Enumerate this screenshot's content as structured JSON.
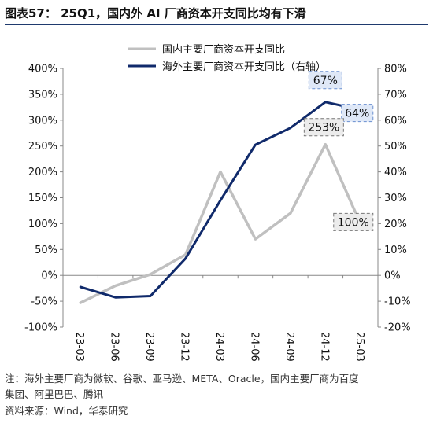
{
  "header": {
    "title": "图表57：  25Q1，国内外 AI 厂商资本开支同比均有下滑"
  },
  "notes": {
    "note_line1": "注：海外主要厂商为微软、谷歌、亚马逊、META、Oracle，国内主要厂商为百度",
    "note_line2": "集团、阿里巴巴、腾讯",
    "source": "资料来源：Wind，华泰研究"
  },
  "colors": {
    "domestic": "#c0c0c0",
    "overseas": "#102a6b",
    "label_box": "#6a8fcf"
  },
  "chart_data": {
    "type": "line",
    "title": "",
    "x": [
      "23-03",
      "23-06",
      "23-09",
      "23-12",
      "24-03",
      "24-06",
      "24-09",
      "24-12",
      "25-03"
    ],
    "left_axis": {
      "ylim": [
        -100,
        400
      ],
      "ticks": [
        "-100%",
        "-50%",
        "0%",
        "50%",
        "100%",
        "150%",
        "200%",
        "250%",
        "300%",
        "350%",
        "400%"
      ],
      "tick_values": [
        -100,
        -50,
        0,
        50,
        100,
        150,
        200,
        250,
        300,
        350,
        400
      ]
    },
    "right_axis": {
      "ylim": [
        -20,
        80
      ],
      "ticks": [
        "-20%",
        "-10%",
        "0%",
        "10%",
        "20%",
        "30%",
        "40%",
        "50%",
        "60%",
        "70%",
        "80%"
      ],
      "tick_values": [
        -20,
        -10,
        0,
        10,
        20,
        30,
        40,
        50,
        60,
        70,
        80
      ]
    },
    "series": [
      {
        "name": "国内主要厂商资本开支同比",
        "axis": "left",
        "values": [
          -53,
          -20,
          2,
          40,
          200,
          70,
          120,
          253,
          100
        ]
      },
      {
        "name": "海外主要厂商资本开支同比（右轴）",
        "axis": "right",
        "values": [
          -4.5,
          -8.5,
          -8,
          6.5,
          29,
          50.5,
          57,
          67,
          64
        ]
      }
    ],
    "legend_position": "top-right",
    "grid": false,
    "annotations": [
      {
        "series": 1,
        "index": 7,
        "text": "67%"
      },
      {
        "series": 1,
        "index": 8,
        "text": "64%"
      },
      {
        "series": 0,
        "index": 7,
        "text": "253%"
      },
      {
        "series": 0,
        "index": 8,
        "text": "100%"
      }
    ]
  }
}
